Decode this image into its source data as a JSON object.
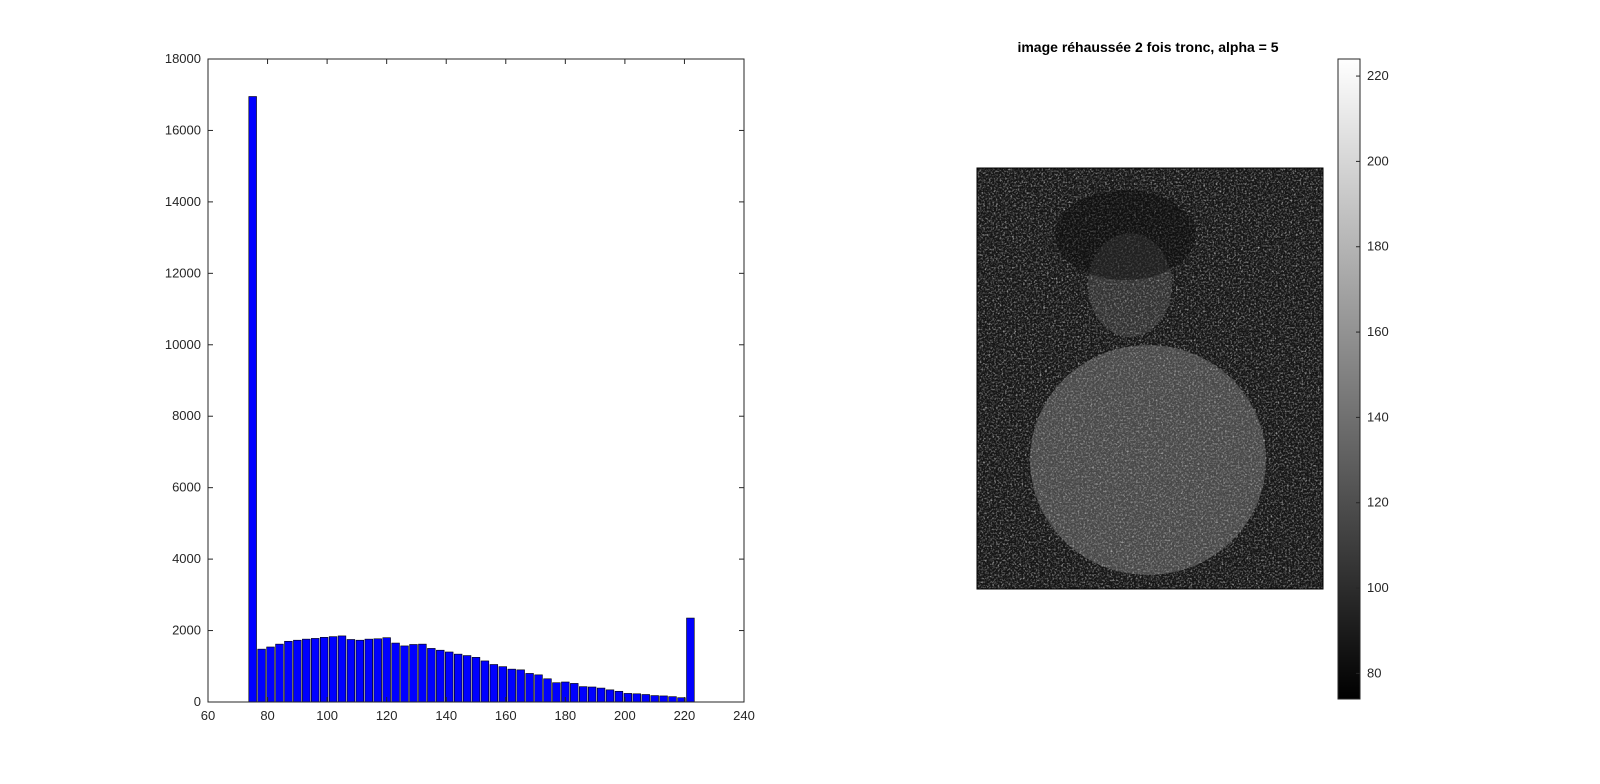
{
  "chart_data": [
    {
      "type": "bar",
      "title": "",
      "xlabel": "",
      "ylabel": "",
      "xlim": [
        60,
        240
      ],
      "ylim": [
        0,
        18000
      ],
      "xticks": [
        60,
        80,
        100,
        120,
        140,
        160,
        180,
        200,
        220,
        240
      ],
      "yticks": [
        0,
        2000,
        4000,
        6000,
        8000,
        10000,
        12000,
        14000,
        16000,
        18000
      ],
      "bar_width": 2.6,
      "bar_color": "#0000ff",
      "x": [
        75,
        78,
        81,
        84,
        87,
        90,
        93,
        96,
        99,
        102,
        105,
        108,
        111,
        114,
        117,
        120,
        123,
        126,
        129,
        132,
        135,
        138,
        141,
        144,
        147,
        150,
        153,
        156,
        159,
        162,
        165,
        168,
        171,
        174,
        177,
        180,
        183,
        186,
        189,
        192,
        195,
        198,
        201,
        204,
        207,
        210,
        213,
        216,
        219,
        222
      ],
      "values": [
        16950,
        1480,
        1540,
        1620,
        1700,
        1730,
        1760,
        1780,
        1810,
        1830,
        1850,
        1750,
        1730,
        1760,
        1770,
        1800,
        1650,
        1570,
        1610,
        1620,
        1500,
        1450,
        1400,
        1340,
        1300,
        1250,
        1150,
        1050,
        990,
        920,
        900,
        800,
        760,
        650,
        540,
        560,
        520,
        430,
        420,
        390,
        340,
        300,
        240,
        230,
        210,
        180,
        170,
        150,
        120,
        2350
      ],
      "grid": false
    },
    {
      "type": "heatmap",
      "title": "image réhaussée 2 fois tronc, alpha = 5",
      "colormap": "gray",
      "colorbar": {
        "position": "right",
        "ticks": [
          80,
          100,
          120,
          140,
          160,
          180,
          200,
          220
        ],
        "range": [
          74,
          224
        ]
      }
    }
  ]
}
